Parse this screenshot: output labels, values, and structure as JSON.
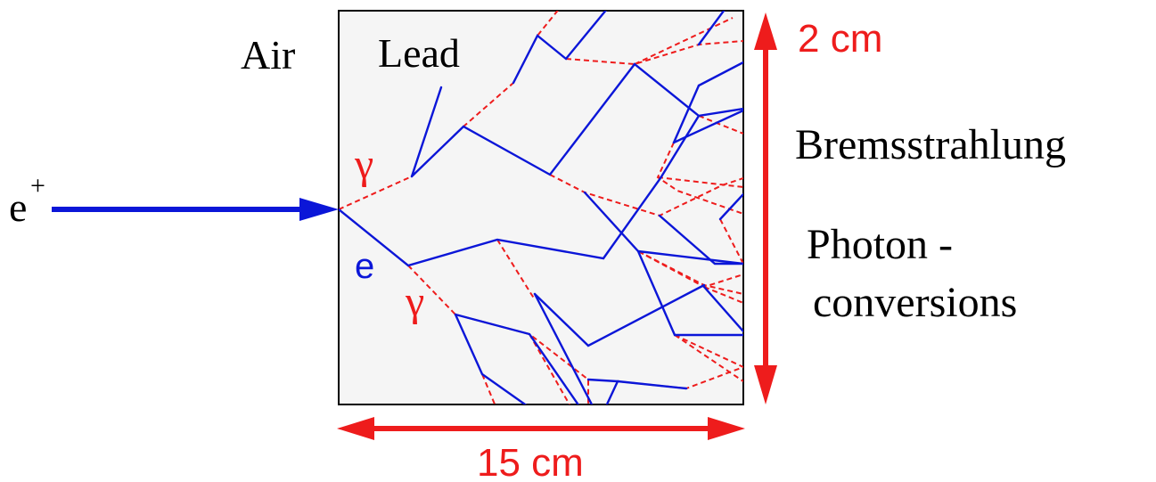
{
  "labels": {
    "air": "Air",
    "lead": "Lead",
    "positron": "e",
    "positron_charge": "+",
    "electron": "e",
    "gamma_upper": "γ",
    "gamma_lower": "γ",
    "height_dimension": "2 cm",
    "width_dimension": "15 cm",
    "bremsstrahlung": "Bremsstrahlung",
    "photon_line1": "Photon -",
    "photon_line2": "conversions"
  },
  "colors": {
    "electron_track": "#0b16d8",
    "photon_track": "#ee1c1c",
    "lead_fill": "#f5f5f5",
    "dimension_arrow": "#ee1c1c",
    "incoming_arrow": "#0b16d8"
  }
}
